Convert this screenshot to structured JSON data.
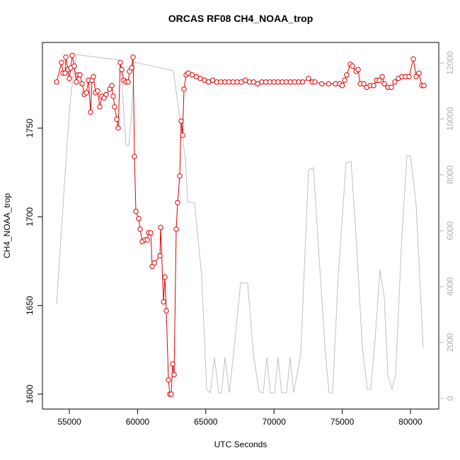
{
  "chart_data": {
    "type": "line",
    "title": "ORCAS RF08 CH4_NOAA_trop",
    "x_label": "UTC Seconds",
    "y_label": "CH4_NOAA_trop",
    "xlim": [
      53029,
      82075
    ],
    "ylim": [
      1591.6,
      1798.3
    ],
    "y2lim": [
      -380,
      12734
    ],
    "xticks": [
      55000,
      60000,
      65000,
      70000,
      75000,
      80000
    ],
    "yticks": [
      1600,
      1650,
      1700,
      1750
    ],
    "y2ticks": [
      0,
      2000,
      4000,
      6000,
      8000,
      10000,
      12000
    ],
    "series": [
      {
        "color": "#e00000",
        "markers": true,
        "x": [
          54066,
          54430,
          54533,
          54689,
          54741,
          54896,
          55000,
          55104,
          55207,
          55363,
          55519,
          55622,
          55778,
          55934,
          56089,
          56245,
          56400,
          56556,
          56660,
          56764,
          56919,
          57075,
          57230,
          57386,
          57542,
          57697,
          57957,
          58112,
          58216,
          58320,
          58475,
          58579,
          58735,
          58838,
          58994,
          59150,
          59305,
          59409,
          59565,
          59668,
          59772,
          59876,
          60083,
          60187,
          60343,
          60550,
          60706,
          60810,
          60965,
          61069,
          61224,
          61639,
          61691,
          61899,
          62002,
          62106,
          62262,
          62366,
          62469,
          62573,
          62677,
          62832,
          62936,
          63091,
          63195,
          63299,
          63403,
          63559,
          63714,
          64000,
          64300,
          64600,
          64900,
          65200,
          65500,
          65800,
          66100,
          66400,
          66700,
          67000,
          67300,
          67600,
          67900,
          68200,
          68500,
          68800,
          69100,
          69400,
          69700,
          70000,
          70300,
          70600,
          70900,
          71200,
          71500,
          71800,
          72100,
          72530,
          72800,
          73000,
          73500,
          74000,
          74500,
          74813,
          75000,
          75180,
          75330,
          75590,
          75750,
          76010,
          76160,
          76320,
          76580,
          76790,
          77050,
          77300,
          77510,
          77720,
          77930,
          78080,
          78340,
          78600,
          78860,
          79120,
          79380,
          79640,
          79900,
          80210,
          80420,
          80620,
          80830,
          80990
        ],
        "values": [
          1776,
          1787,
          1781,
          1781,
          1790,
          1783,
          1778,
          1784,
          1791,
          1785,
          1776,
          1780,
          1780,
          1775,
          1769,
          1770,
          1777,
          1759,
          1777,
          1779,
          1770,
          1771,
          1762,
          1768,
          1767,
          1769,
          1772,
          1774,
          1768,
          1762,
          1755,
          1750,
          1787,
          1783,
          1777,
          1776,
          1776,
          1782,
          1784,
          1790,
          1734,
          1703,
          1699,
          1693,
          1686,
          1687,
          1687,
          1691,
          1691,
          1672,
          1674,
          1678,
          1694,
          1652,
          1666,
          1647,
          1608,
          1600,
          1600,
          1617,
          1611,
          1693,
          1708,
          1723,
          1754,
          1746,
          1772,
          1780,
          1781,
          1780,
          1779,
          1778,
          1777,
          1776,
          1777,
          1776,
          1776,
          1776,
          1776,
          1776,
          1776,
          1776,
          1777,
          1776,
          1776,
          1775,
          1776,
          1776,
          1776,
          1776,
          1776,
          1776,
          1776,
          1776,
          1776,
          1776,
          1776,
          1778,
          1776,
          1776,
          1775,
          1775,
          1775,
          1775,
          1774,
          1777,
          1780,
          1786,
          1785,
          1782,
          1783,
          1775,
          1775,
          1773,
          1774,
          1774,
          1777,
          1777,
          1779,
          1775,
          1773,
          1773,
          1776,
          1778,
          1779,
          1779,
          1779,
          1789,
          1779,
          1781,
          1774,
          1774
        ]
      },
      {
        "color": "#c0c0c0",
        "axis": "y2",
        "markers": false,
        "x": [
          54066,
          54844,
          55104,
          55519,
          58735,
          58994,
          59150,
          59357,
          59565,
          59772,
          62625,
          63507,
          63662,
          64181,
          64700,
          65063,
          65322,
          65633,
          65944,
          66152,
          66411,
          66722,
          67033,
          67552,
          68070,
          68485,
          68900,
          69211,
          69470,
          69730,
          70041,
          70300,
          70560,
          70923,
          71182,
          71441,
          71960,
          72530,
          72893,
          73360,
          73775,
          74034,
          74294,
          74709,
          75280,
          75643,
          76006,
          76472,
          76835,
          77095,
          77406,
          77769,
          78080,
          78340,
          78651,
          78911,
          79380,
          79743,
          80002,
          80417,
          80935
        ],
        "values": [
          3370,
          9190,
          10840,
          12300,
          12100,
          10200,
          9060,
          9060,
          10200,
          12030,
          11720,
          8560,
          7040,
          6990,
          4380,
          330,
          200,
          1470,
          200,
          200,
          1470,
          200,
          1590,
          4130,
          4130,
          1590,
          250,
          200,
          1470,
          200,
          200,
          1470,
          200,
          200,
          1470,
          200,
          1590,
          8180,
          8250,
          4630,
          1590,
          200,
          200,
          4380,
          8430,
          8480,
          5900,
          1850,
          330,
          330,
          2100,
          4610,
          3620,
          840,
          330,
          840,
          5900,
          8680,
          8680,
          6910,
          1800
        ]
      }
    ]
  }
}
